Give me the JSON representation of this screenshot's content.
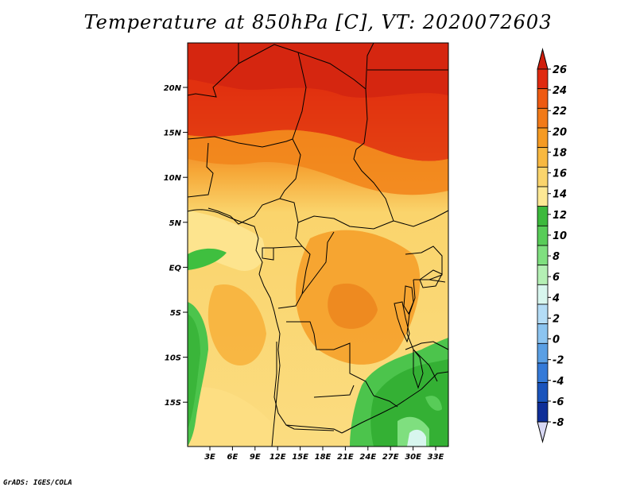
{
  "title": "Temperature at 850hPa [C], VT: 2020072603",
  "credit": "GrADS: IGES/COLA",
  "lat_ticks": [
    "20N",
    "15N",
    "10N",
    "5N",
    "EQ",
    "5S",
    "10S",
    "15S"
  ],
  "lon_ticks": [
    "3E",
    "6E",
    "9E",
    "12E",
    "15E",
    "18E",
    "21E",
    "24E",
    "27E",
    "30E",
    "33E"
  ],
  "colorbar": {
    "labels": [
      "26",
      "24",
      "22",
      "20",
      "18",
      "16",
      "14",
      "12",
      "10",
      "8",
      "6",
      "4",
      "2",
      "0",
      "-2",
      "-4",
      "-6",
      "-8"
    ],
    "colors": [
      "#e02a10",
      "#ee5a12",
      "#f27a18",
      "#f59a22",
      "#f8b840",
      "#fad46c",
      "#fde894",
      "#3cb93c",
      "#58cc58",
      "#7fdf7f",
      "#b4efb4",
      "#d8f6ee",
      "#b4dcf6",
      "#8cc4f0",
      "#5a9fe4",
      "#347ad8",
      "#1a54bc",
      "#0e2e98",
      "#060e60"
    ],
    "over_color": "#d01e0c",
    "under_color": "#d8d8f4"
  }
}
